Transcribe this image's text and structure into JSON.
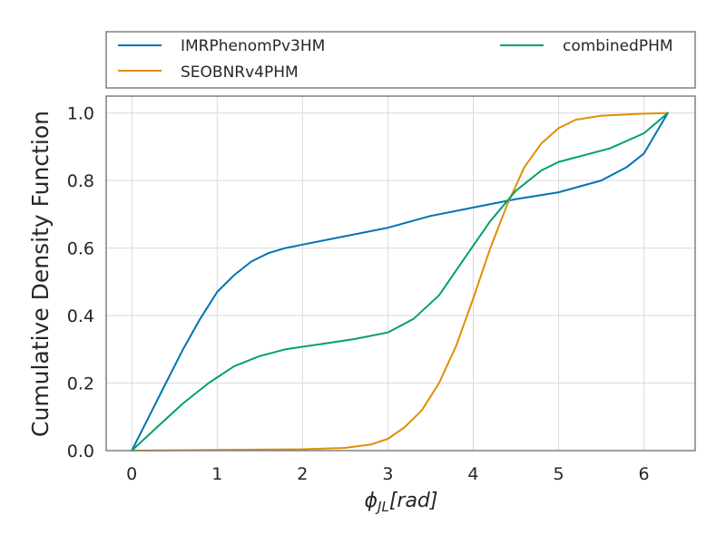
{
  "chart_data": {
    "type": "line",
    "xlabel": "ϕ",
    "xlabel_sub": "JL",
    "xlabel_unit": "[rad]",
    "ylabel": "Cumulative Density Function",
    "xlim": [
      -0.3,
      6.6
    ],
    "ylim": [
      0,
      1.05
    ],
    "xticks": [
      0,
      1,
      2,
      3,
      4,
      5,
      6
    ],
    "yticks": [
      "0.0",
      "0.2",
      "0.4",
      "0.6",
      "0.8",
      "1.0"
    ],
    "grid": true,
    "legend_position": "top, above plot, two columns",
    "series": [
      {
        "name": "IMRPhenomPv3HM",
        "color": "#0072b2",
        "x": [
          0,
          0.2,
          0.4,
          0.6,
          0.8,
          1.0,
          1.2,
          1.4,
          1.6,
          1.8,
          2.0,
          2.5,
          3.0,
          3.5,
          4.0,
          4.5,
          5.0,
          5.5,
          5.8,
          6.0,
          6.28
        ],
        "y": [
          0,
          0.1,
          0.2,
          0.3,
          0.39,
          0.47,
          0.52,
          0.56,
          0.585,
          0.6,
          0.61,
          0.635,
          0.66,
          0.695,
          0.72,
          0.745,
          0.765,
          0.8,
          0.84,
          0.88,
          1.0
        ]
      },
      {
        "name": "SEOBNRv4PHM",
        "color": "#de8f05",
        "x": [
          0,
          1.0,
          2.0,
          2.5,
          2.8,
          3.0,
          3.2,
          3.4,
          3.6,
          3.8,
          4.0,
          4.2,
          4.4,
          4.6,
          4.8,
          5.0,
          5.2,
          5.5,
          6.0,
          6.28
        ],
        "y": [
          0,
          0.002,
          0.004,
          0.008,
          0.018,
          0.035,
          0.07,
          0.12,
          0.2,
          0.31,
          0.45,
          0.6,
          0.73,
          0.84,
          0.91,
          0.955,
          0.98,
          0.992,
          0.998,
          1.0
        ]
      },
      {
        "name": "combinedPHM",
        "color": "#029e73",
        "x": [
          0,
          0.3,
          0.6,
          0.9,
          1.2,
          1.5,
          1.8,
          2.2,
          2.6,
          3.0,
          3.3,
          3.6,
          3.9,
          4.2,
          4.5,
          4.8,
          5.0,
          5.3,
          5.6,
          6.0,
          6.28
        ],
        "y": [
          0,
          0.07,
          0.14,
          0.2,
          0.25,
          0.28,
          0.3,
          0.315,
          0.33,
          0.35,
          0.39,
          0.46,
          0.57,
          0.68,
          0.77,
          0.83,
          0.855,
          0.875,
          0.895,
          0.94,
          1.0
        ]
      }
    ]
  }
}
